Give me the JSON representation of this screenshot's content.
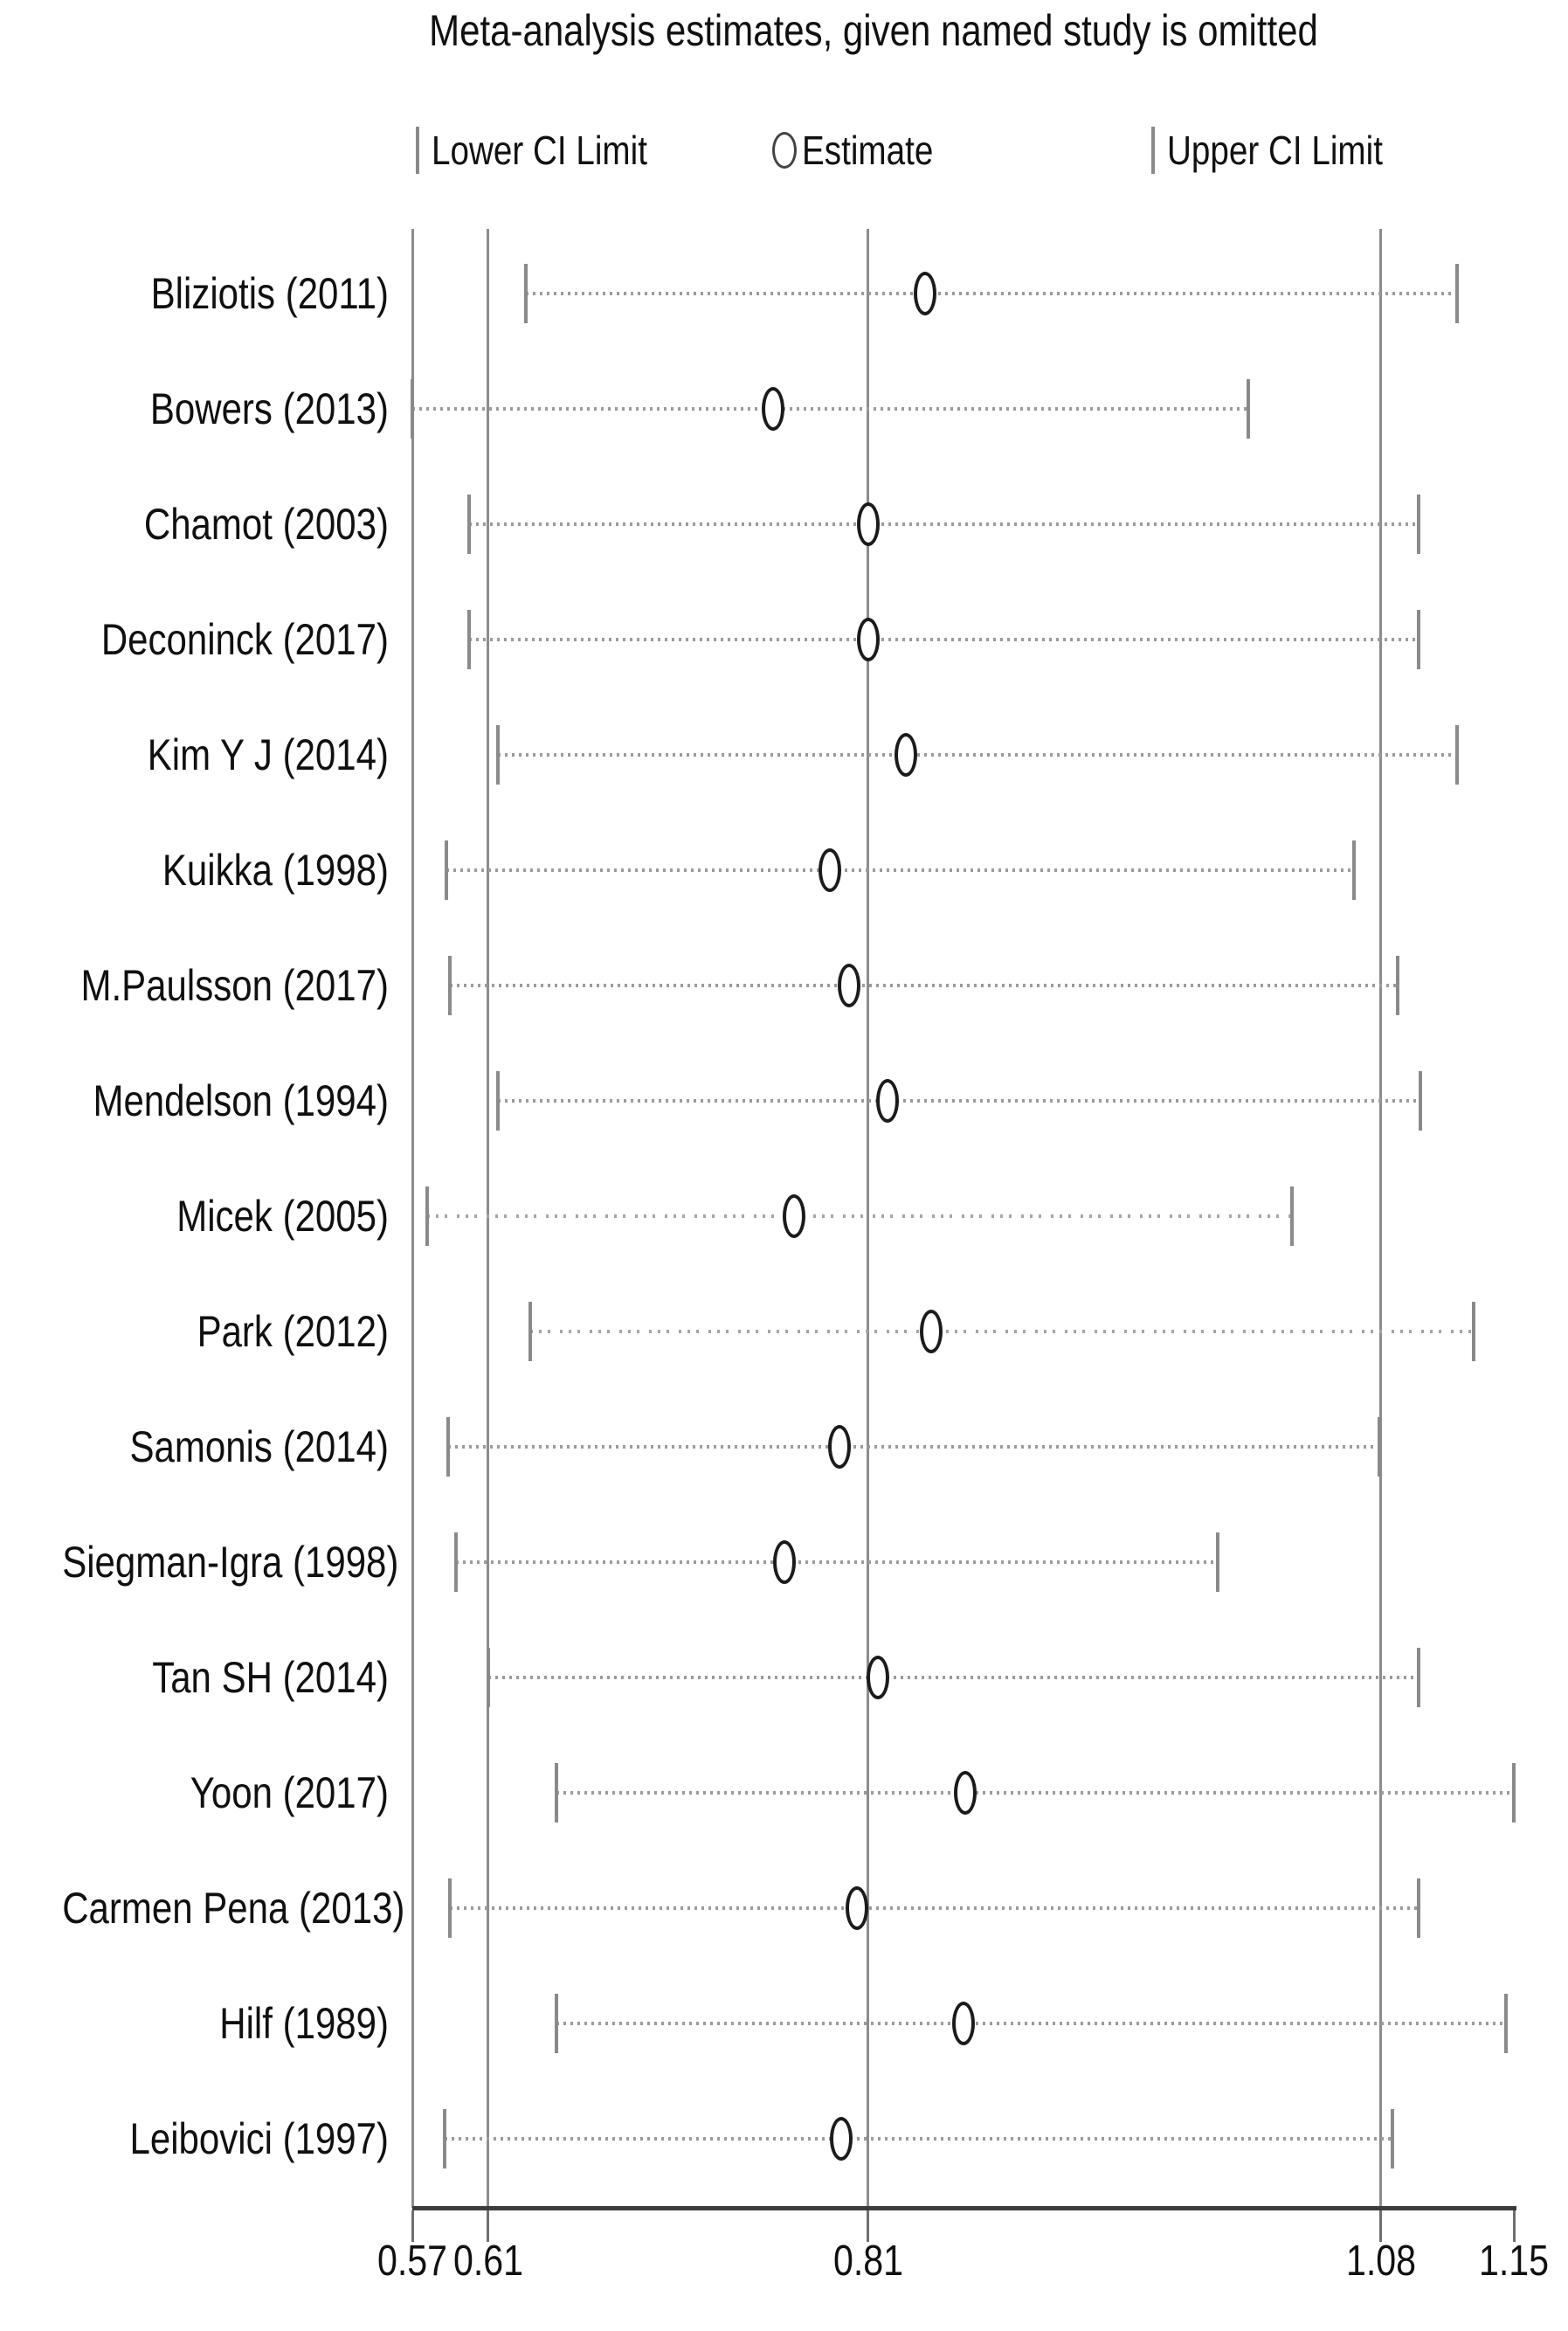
{
  "colors": {
    "background": "#ffffff",
    "reference_line": "#8c8c8c",
    "axis_line": "#3c3c3c",
    "ci_tick": "#8a8a8a",
    "connector_dots": "#9b9b9b",
    "marker_stroke": "#1b1b1b",
    "text": "#101010"
  },
  "chart_data": {
    "type": "scatter",
    "subtype": "leave-one-out-sensitivity-forest-plot",
    "title": "Meta-analysis estimates, given named study is omitted",
    "legend": [
      {
        "symbol": "|",
        "label": "Lower CI Limit"
      },
      {
        "symbol": "circle",
        "label": "Estimate"
      },
      {
        "symbol": "|",
        "label": "Upper CI Limit"
      }
    ],
    "x_axis": {
      "range": [
        0.57,
        1.15
      ],
      "ticks": [
        0.57,
        0.61,
        0.81,
        1.08,
        1.15
      ],
      "tick_labels": [
        "0.57",
        "0.61",
        "0.81",
        "1.08",
        "1.15"
      ],
      "reference_lines": [
        0.57,
        0.61,
        0.81,
        1.08
      ],
      "grid": false
    },
    "legend_position": "top",
    "studies": [
      {
        "label": "Bliziotis  (2011)",
        "lower": 0.63,
        "estimate": 0.84,
        "upper": 1.12,
        "line_style": "dotted"
      },
      {
        "label": "Bowers  (2013)",
        "lower": 0.57,
        "estimate": 0.76,
        "upper": 1.01,
        "line_style": "dotted"
      },
      {
        "label": "Chamot  (2003)",
        "lower": 0.6,
        "estimate": 0.81,
        "upper": 1.1,
        "line_style": "dotted"
      },
      {
        "label": "Deconinck (2017)",
        "lower": 0.6,
        "estimate": 0.81,
        "upper": 1.1,
        "line_style": "dotted"
      },
      {
        "label": "Kim Y J (2014)",
        "lower": 0.615,
        "estimate": 0.83,
        "upper": 1.12,
        "line_style": "dotted"
      },
      {
        "label": "Kuikka  (1998)",
        "lower": 0.588,
        "estimate": 0.79,
        "upper": 1.066,
        "line_style": "dotted"
      },
      {
        "label": "M.Paulsson  (2017)",
        "lower": 0.59,
        "estimate": 0.8,
        "upper": 1.089,
        "line_style": "dotted"
      },
      {
        "label": "Mendelson  (1994)",
        "lower": 0.615,
        "estimate": 0.82,
        "upper": 1.101,
        "line_style": "dotted"
      },
      {
        "label": "Micek  (2005)",
        "lower": 0.578,
        "estimate": 0.771,
        "upper": 1.033,
        "line_style": "dash-dot"
      },
      {
        "label": "Park (2012)",
        "lower": 0.632,
        "estimate": 0.843,
        "upper": 1.129,
        "line_style": "dash-dot"
      },
      {
        "label": "Samonis  (2014)",
        "lower": 0.589,
        "estimate": 0.795,
        "upper": 1.079,
        "line_style": "dotted"
      },
      {
        "label": "Siegman-Igra  (1998)",
        "lower": 0.593,
        "estimate": 0.766,
        "upper": 0.994,
        "line_style": "dotted"
      },
      {
        "label": "Tan SH (2014)",
        "lower": 0.61,
        "estimate": 0.815,
        "upper": 1.1,
        "line_style": "dotted"
      },
      {
        "label": "Yoon  (2017)",
        "lower": 0.646,
        "estimate": 0.861,
        "upper": 1.15,
        "line_style": "dotted"
      },
      {
        "label": "Carmen Pena  (2013)",
        "lower": 0.59,
        "estimate": 0.804,
        "upper": 1.1,
        "line_style": "dotted"
      },
      {
        "label": "Hilf  (1989)",
        "lower": 0.646,
        "estimate": 0.86,
        "upper": 1.146,
        "line_style": "dotted"
      },
      {
        "label": "Leibovici  (1997)",
        "lower": 0.587,
        "estimate": 0.796,
        "upper": 1.086,
        "line_style": "dotted"
      }
    ]
  }
}
